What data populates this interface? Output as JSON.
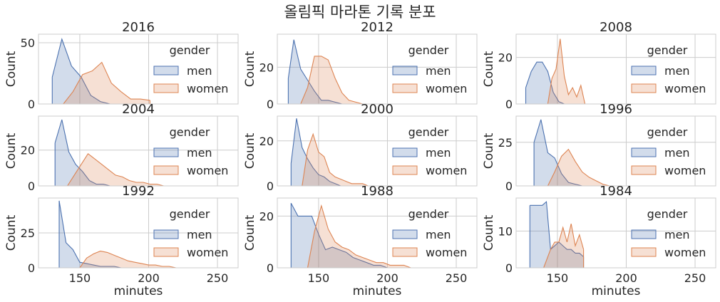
{
  "figure_title": "올림픽 마라톤 기록 분포",
  "colors": {
    "men": "#4c72b0",
    "women": "#dd8452",
    "grid": "#cccccc",
    "text": "#262626"
  },
  "chart_data": [
    {
      "type": "area",
      "title": "2016",
      "xlabel": "",
      "ylabel": "Count",
      "xlim": [
        120,
        265
      ],
      "ylim": [
        0,
        57
      ],
      "yticks": [
        0,
        50
      ],
      "xticks": [
        150,
        200,
        250
      ],
      "show_xticklabels": false,
      "legend": {
        "title": "gender",
        "entries": [
          "men",
          "women"
        ],
        "placement": "right"
      },
      "series": [
        {
          "name": "men",
          "x": [
            130,
            137,
            144,
            151,
            158,
            165,
            172
          ],
          "values": [
            22,
            53,
            31,
            22,
            7,
            2,
            0
          ]
        },
        {
          "name": "women",
          "x": [
            138,
            145,
            152,
            159,
            166,
            173,
            180,
            187,
            194,
            201
          ],
          "values": [
            0,
            10,
            24,
            27,
            34,
            17,
            10,
            4,
            4,
            3
          ]
        }
      ]
    },
    {
      "type": "area",
      "title": "2012",
      "xlabel": "",
      "ylabel": "Count",
      "xlim": [
        120,
        265
      ],
      "ylim": [
        0,
        38
      ],
      "yticks": [
        0,
        20
      ],
      "xticks": [
        150,
        200,
        250
      ],
      "show_xticklabels": false,
      "legend": {
        "title": "gender",
        "entries": [
          "men",
          "women"
        ],
        "placement": "right"
      },
      "series": [
        {
          "name": "men",
          "x": [
            128,
            132,
            137,
            142,
            147,
            152,
            157,
            162,
            167,
            172
          ],
          "values": [
            14,
            35,
            19,
            13,
            7,
            2,
            2,
            1,
            0,
            0
          ]
        },
        {
          "name": "women",
          "x": [
            137,
            142,
            147,
            152,
            157,
            162,
            167,
            172,
            177,
            182
          ],
          "values": [
            0,
            9,
            26,
            26,
            24,
            14,
            6,
            2,
            1,
            0
          ]
        }
      ]
    },
    {
      "type": "area",
      "title": "2008",
      "xlabel": "",
      "ylabel": "Count",
      "xlim": [
        120,
        265
      ],
      "ylim": [
        0,
        30
      ],
      "yticks": [
        0,
        20
      ],
      "xticks": [
        150,
        200,
        250
      ],
      "show_xticklabels": false,
      "legend": {
        "title": "gender",
        "entries": [
          "men",
          "women"
        ],
        "placement": "right"
      },
      "series": [
        {
          "name": "men",
          "x": [
            127,
            131,
            135,
            139,
            143,
            147,
            151,
            155
          ],
          "values": [
            7,
            14,
            18,
            18,
            14,
            5,
            1,
            0
          ]
        },
        {
          "name": "women",
          "x": [
            143,
            146,
            149,
            152,
            155,
            158,
            161,
            164,
            167,
            170
          ],
          "values": [
            0,
            11,
            15,
            28,
            12,
            4,
            7,
            3,
            8,
            0
          ]
        }
      ]
    },
    {
      "type": "area",
      "title": "2004",
      "xlabel": "",
      "ylabel": "Count",
      "xlim": [
        120,
        265
      ],
      "ylim": [
        0,
        39
      ],
      "yticks": [
        0,
        20
      ],
      "xticks": [
        150,
        200,
        250
      ],
      "show_xticklabels": false,
      "legend": {
        "title": "gender",
        "entries": [
          "men",
          "women"
        ],
        "placement": "right"
      },
      "series": [
        {
          "name": "men",
          "x": [
            132,
            137,
            142,
            147,
            152,
            157,
            162,
            167,
            172,
            177
          ],
          "values": [
            24,
            37,
            19,
            12,
            8,
            3,
            1,
            1,
            0,
            0
          ]
        },
        {
          "name": "women",
          "x": [
            141,
            146,
            151,
            156,
            161,
            166,
            171,
            176,
            181,
            186,
            191,
            196,
            201,
            206,
            211
          ],
          "values": [
            0,
            6,
            12,
            18,
            15,
            12,
            9,
            6,
            5,
            3,
            2,
            2,
            1,
            1,
            0
          ]
        }
      ]
    },
    {
      "type": "area",
      "title": "2000",
      "xlabel": "",
      "ylabel": "Count",
      "xlim": [
        120,
        265
      ],
      "ylim": [
        0,
        31
      ],
      "yticks": [
        0,
        20
      ],
      "xticks": [
        150,
        200,
        250
      ],
      "show_xticklabels": false,
      "legend": {
        "title": "gender",
        "entries": [
          "men",
          "women"
        ],
        "placement": "right"
      },
      "series": [
        {
          "name": "men",
          "x": [
            130,
            134,
            138,
            142,
            146,
            150,
            154,
            158,
            162,
            166,
            170
          ],
          "values": [
            10,
            30,
            17,
            12,
            8,
            5,
            4,
            2,
            1,
            0,
            0
          ]
        },
        {
          "name": "women",
          "x": [
            138,
            142,
            146,
            150,
            154,
            158,
            162,
            166,
            170,
            174,
            178,
            182,
            186
          ],
          "values": [
            0,
            16,
            23,
            15,
            13,
            6,
            4,
            3,
            2,
            1,
            1,
            1,
            0
          ]
        }
      ]
    },
    {
      "type": "area",
      "title": "1996",
      "xlabel": "",
      "ylabel": "Count",
      "xlim": [
        120,
        265
      ],
      "ylim": [
        0,
        40
      ],
      "yticks": [
        0,
        25
      ],
      "xticks": [
        150,
        200,
        250
      ],
      "show_xticklabels": false,
      "legend": {
        "title": "gender",
        "entries": [
          "men",
          "women"
        ],
        "placement": "right"
      },
      "series": [
        {
          "name": "men",
          "x": [
            133,
            138,
            143,
            148,
            153,
            158,
            163,
            168,
            173
          ],
          "values": [
            25,
            38,
            19,
            16,
            7,
            2,
            1,
            0,
            0
          ]
        },
        {
          "name": "women",
          "x": [
            143,
            148,
            153,
            158,
            163,
            168,
            173,
            178,
            183,
            188
          ],
          "values": [
            0,
            8,
            17,
            21,
            14,
            8,
            5,
            3,
            1,
            0
          ]
        }
      ]
    },
    {
      "type": "area",
      "title": "1992",
      "xlabel": "minutes",
      "ylabel": "Count",
      "xlim": [
        120,
        265
      ],
      "ylim": [
        0,
        50
      ],
      "yticks": [
        0,
        25
      ],
      "xticks": [
        150,
        200,
        250
      ],
      "show_xticklabels": true,
      "legend": {
        "title": "gender",
        "entries": [
          "men",
          "women"
        ],
        "placement": "right"
      },
      "series": [
        {
          "name": "men",
          "x": [
            135,
            140,
            145,
            150,
            155,
            160,
            165,
            170,
            175,
            180
          ],
          "values": [
            48,
            18,
            13,
            4,
            3,
            2,
            1,
            1,
            1,
            0
          ]
        },
        {
          "name": "women",
          "x": [
            150,
            155,
            160,
            165,
            170,
            175,
            180,
            185,
            190,
            195,
            200,
            205,
            210,
            215,
            220
          ],
          "values": [
            0,
            7,
            10,
            12,
            11,
            9,
            7,
            5,
            4,
            3,
            2,
            2,
            1,
            1,
            0
          ]
        }
      ]
    },
    {
      "type": "area",
      "title": "1988",
      "xlabel": "minutes",
      "ylabel": "Count",
      "xlim": [
        120,
        265
      ],
      "ylim": [
        0,
        27
      ],
      "yticks": [
        0,
        20
      ],
      "xticks": [
        150,
        200,
        250
      ],
      "show_xticklabels": true,
      "legend": {
        "title": "gender",
        "entries": [
          "men",
          "women"
        ],
        "placement": "right"
      },
      "series": [
        {
          "name": "men",
          "x": [
            130,
            135,
            140,
            145,
            150,
            155,
            160,
            165,
            170,
            175,
            180,
            185,
            190,
            195,
            200,
            205
          ],
          "values": [
            25,
            20,
            20,
            20,
            13,
            7,
            8,
            7,
            6,
            4,
            3,
            2,
            1,
            1,
            0,
            0
          ]
        },
        {
          "name": "women",
          "x": [
            142,
            147,
            152,
            157,
            162,
            167,
            172,
            177,
            182,
            187,
            192,
            197,
            202,
            207,
            212,
            217
          ],
          "values": [
            0,
            14,
            24,
            15,
            10,
            8,
            7,
            5,
            4,
            3,
            2,
            2,
            1,
            1,
            1,
            0
          ]
        }
      ]
    },
    {
      "type": "area",
      "title": "1984",
      "xlabel": "minutes",
      "ylabel": "Count",
      "xlim": [
        120,
        265
      ],
      "ylim": [
        0,
        19
      ],
      "yticks": [
        0,
        10
      ],
      "xticks": [
        150,
        200,
        250
      ],
      "show_xticklabels": true,
      "legend": {
        "title": "gender",
        "entries": [
          "men",
          "women"
        ],
        "placement": "right"
      },
      "series": [
        {
          "name": "men",
          "x": [
            130,
            133,
            136,
            139,
            142,
            145,
            148,
            151,
            154,
            157,
            160,
            163,
            166,
            169
          ],
          "values": [
            17,
            17,
            17,
            17,
            18,
            5,
            6,
            7,
            6,
            5,
            5,
            4,
            4,
            3
          ]
        },
        {
          "name": "women",
          "x": [
            140,
            145,
            148,
            151,
            154,
            157,
            160,
            163,
            166,
            169
          ],
          "values": [
            0,
            5,
            7,
            7,
            11,
            7,
            12,
            6,
            9,
            5
          ]
        }
      ]
    }
  ]
}
